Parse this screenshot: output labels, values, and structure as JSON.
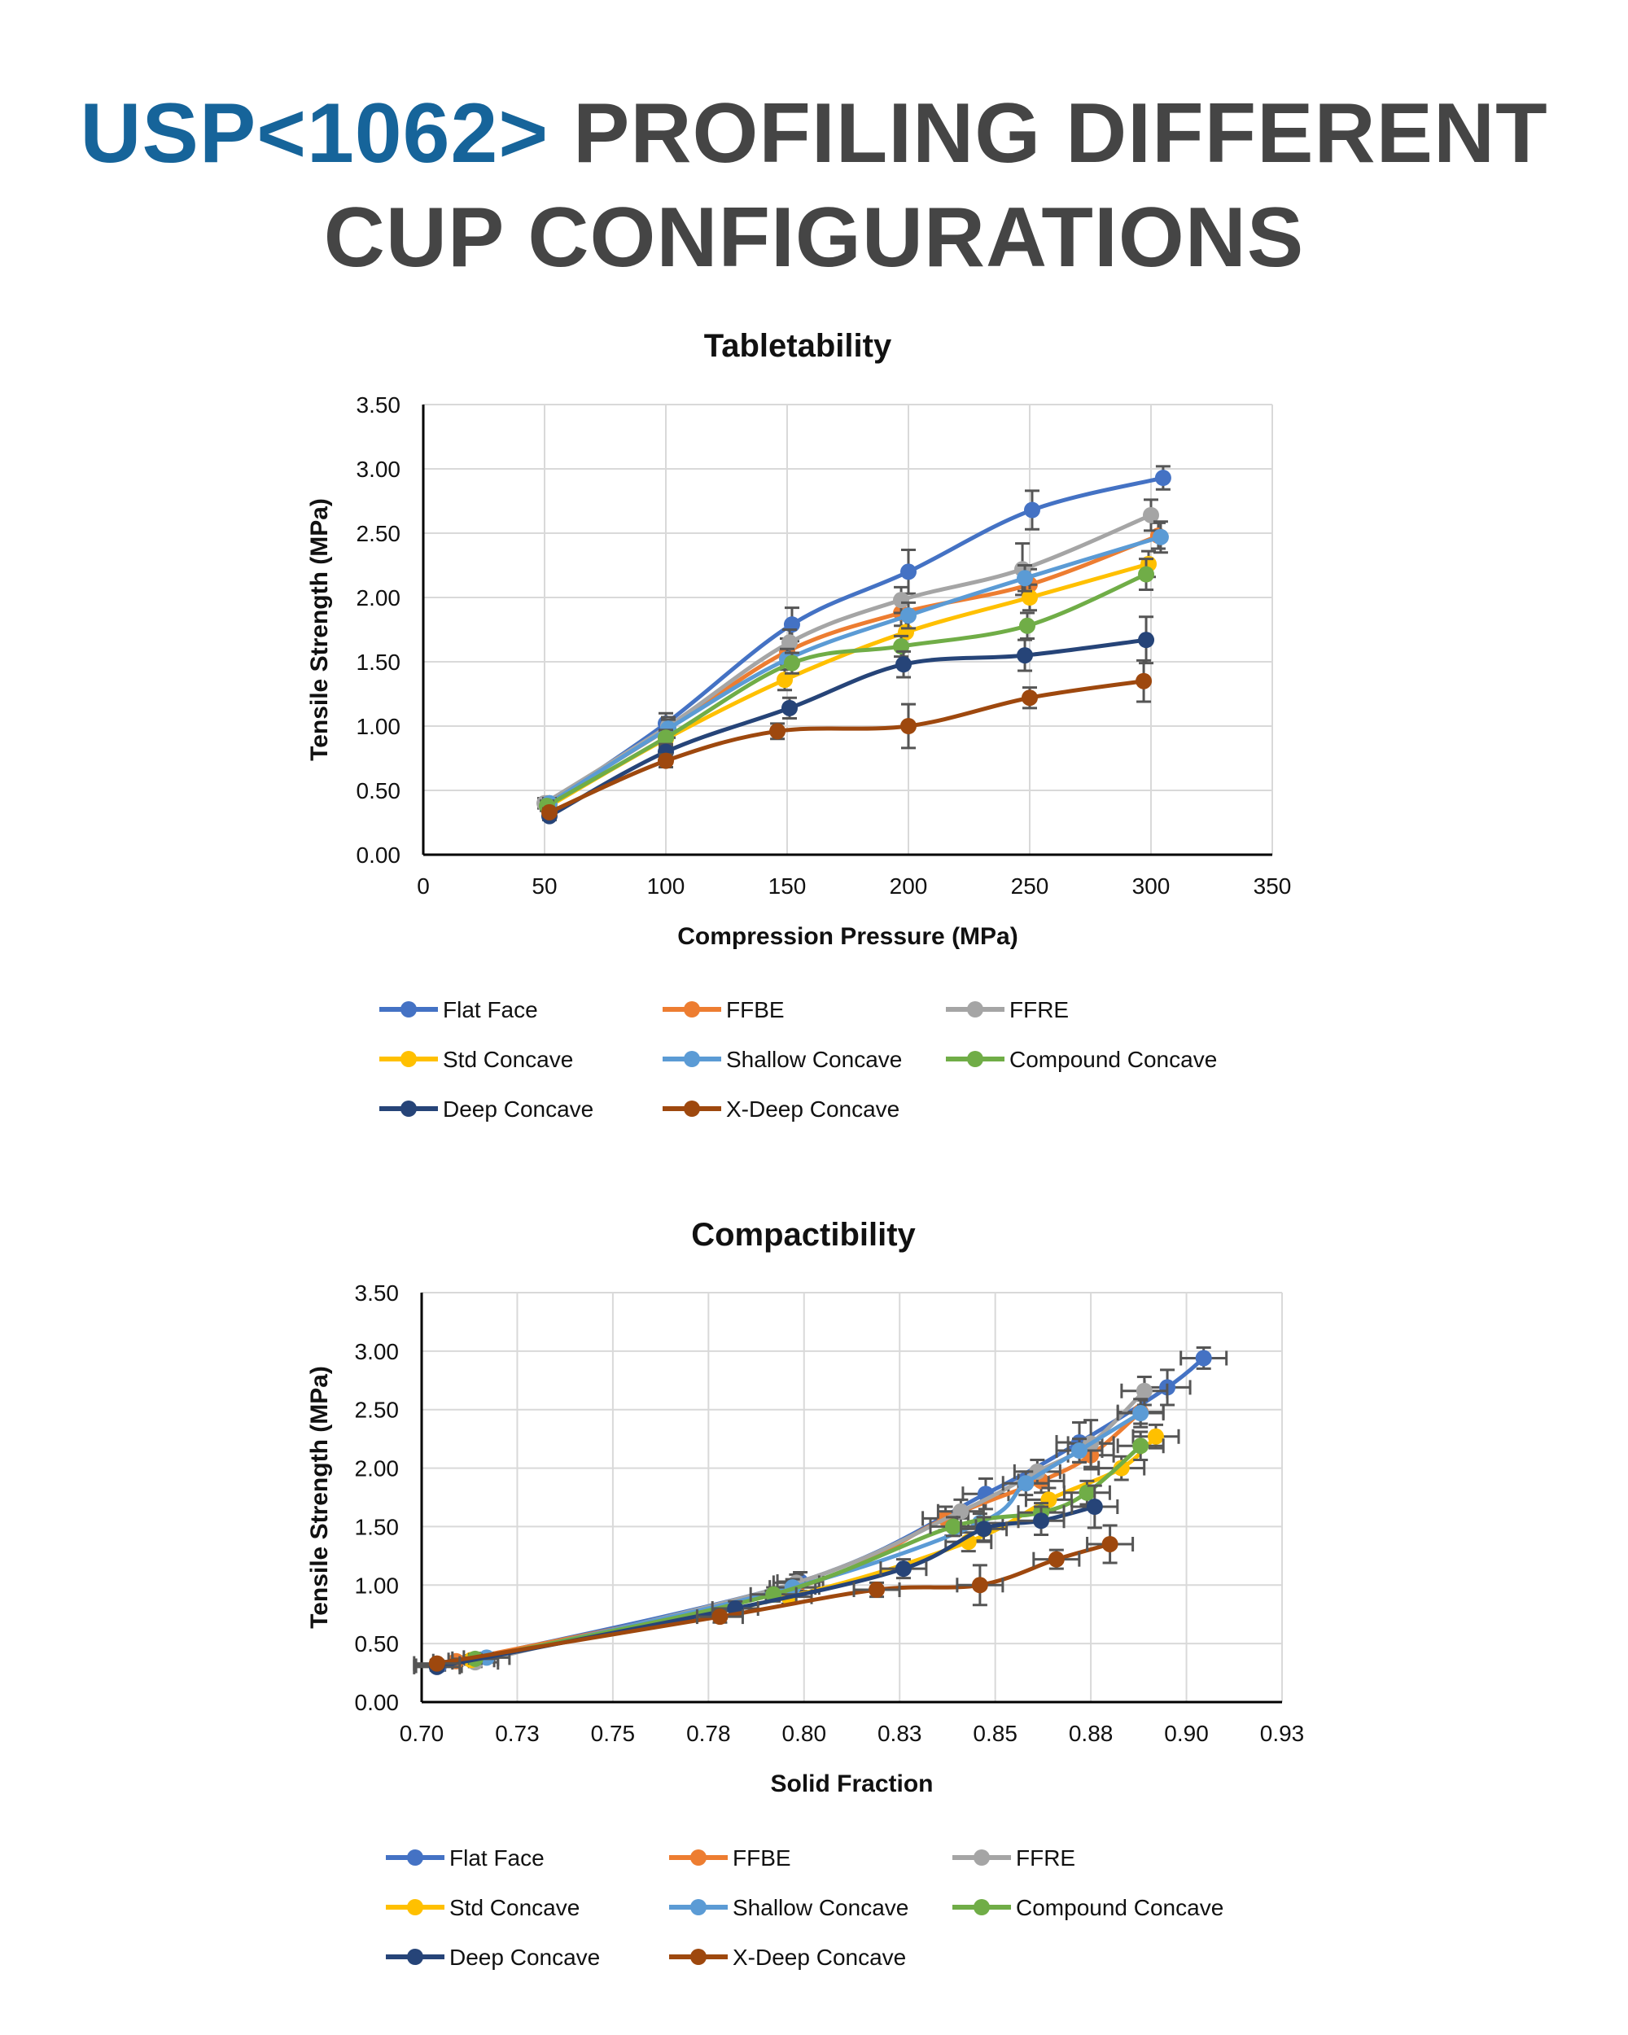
{
  "header": {
    "title_accent": "USP<1062>",
    "title_rest": "PROFILING DIFFERENT",
    "title_line2": "CUP CONFIGURATIONS"
  },
  "colors": {
    "accent": "#16649a",
    "title_gray": "#454545",
    "Flat Face": "#4472c4",
    "FFBE": "#ed7d31",
    "FFRE": "#a5a5a5",
    "Std Concave": "#ffc000",
    "Shallow Concave": "#5b9bd5",
    "Compound Concave": "#70ad47",
    "Deep Concave": "#264478",
    "X-Deep Concave": "#9e480e"
  },
  "chart_data": [
    {
      "type": "line",
      "title": "Tabletability",
      "xlabel": "Compression Pressure (MPa)",
      "ylabel": "Tensile Strength (MPa)",
      "xlim": [
        0,
        350
      ],
      "ylim": [
        0,
        3.5
      ],
      "xticks": [
        "0",
        "50",
        "100",
        "150",
        "200",
        "250",
        "300",
        "350"
      ],
      "yticks": [
        "0.00",
        "0.50",
        "1.00",
        "1.50",
        "2.00",
        "2.50",
        "3.00",
        "3.50"
      ],
      "grid": "on",
      "legend_position": "bottom",
      "series": [
        {
          "name": "Flat Face",
          "x": [
            52,
            100,
            152,
            200,
            251,
            305
          ],
          "y": [
            0.4,
            1.02,
            1.79,
            2.2,
            2.68,
            2.93
          ],
          "err": [
            0.04,
            0.08,
            0.13,
            0.17,
            0.15,
            0.09
          ]
        },
        {
          "name": "FFBE",
          "x": [
            51,
            101,
            150,
            197,
            250,
            303
          ],
          "y": [
            0.4,
            0.98,
            1.58,
            1.88,
            2.1,
            2.48
          ],
          "err": [
            0.04,
            0.07,
            0.1,
            0.1,
            0.12,
            0.1
          ]
        },
        {
          "name": "FFRE",
          "x": [
            50,
            101,
            151,
            197,
            247,
            300
          ],
          "y": [
            0.4,
            1.0,
            1.65,
            1.98,
            2.22,
            2.64
          ],
          "err": [
            0.04,
            0.07,
            0.1,
            0.1,
            0.2,
            0.12
          ]
        },
        {
          "name": "Std Concave",
          "x": [
            52,
            100,
            149,
            199,
            250,
            299
          ],
          "y": [
            0.38,
            0.9,
            1.36,
            1.73,
            2.0,
            2.26
          ],
          "err": [
            0.04,
            0.06,
            0.08,
            0.1,
            0.1,
            0.1
          ]
        },
        {
          "name": "Shallow Concave",
          "x": [
            52,
            101,
            150,
            200,
            248,
            304
          ],
          "y": [
            0.4,
            0.98,
            1.52,
            1.86,
            2.15,
            2.47
          ],
          "err": [
            0.04,
            0.07,
            0.08,
            0.1,
            0.1,
            0.12
          ]
        },
        {
          "name": "Compound Concave",
          "x": [
            51,
            100,
            152,
            197,
            249,
            298
          ],
          "y": [
            0.38,
            0.91,
            1.49,
            1.62,
            1.78,
            2.18
          ],
          "err": [
            0.04,
            0.06,
            0.08,
            0.08,
            0.1,
            0.12
          ]
        },
        {
          "name": "Deep Concave",
          "x": [
            52,
            100,
            151,
            198,
            248,
            298
          ],
          "y": [
            0.3,
            0.8,
            1.14,
            1.48,
            1.55,
            1.67
          ],
          "err": [
            0.03,
            0.06,
            0.08,
            0.1,
            0.12,
            0.18
          ]
        },
        {
          "name": "X-Deep Concave",
          "x": [
            52,
            100,
            146,
            200,
            250,
            297
          ],
          "y": [
            0.33,
            0.73,
            0.96,
            1.0,
            1.22,
            1.35
          ],
          "err": [
            0.03,
            0.05,
            0.06,
            0.17,
            0.08,
            0.16
          ]
        }
      ]
    },
    {
      "type": "scatter",
      "title": "Compactibility",
      "xlabel": "Solid Fraction",
      "ylabel": "Tensile Strength (MPa)",
      "xlim": [
        0.7,
        0.925
      ],
      "ylim": [
        0,
        3.5
      ],
      "xticks": [
        "0.70",
        "0.73",
        "0.75",
        "0.78",
        "0.80",
        "0.83",
        "0.85",
        "0.88",
        "0.90",
        "0.93"
      ],
      "yticks": [
        "0.00",
        "0.50",
        "1.00",
        "1.50",
        "2.00",
        "2.50",
        "3.00",
        "3.50"
      ],
      "grid": "on",
      "legend_position": "bottom",
      "series": [
        {
          "name": "Flat Face",
          "x": [
            0.7045,
            0.799,
            0.8475,
            0.872,
            0.895,
            0.9045
          ],
          "y": [
            0.31,
            1.03,
            1.78,
            2.22,
            2.69,
            2.94
          ],
          "err": [
            0.04,
            0.08,
            0.13,
            0.17,
            0.15,
            0.09
          ]
        },
        {
          "name": "FFBE",
          "x": [
            0.709,
            0.798,
            0.837,
            0.862,
            0.875,
            0.888
          ],
          "y": [
            0.35,
            0.98,
            1.57,
            1.89,
            2.11,
            2.48
          ],
          "err": [
            0.04,
            0.07,
            0.1,
            0.1,
            0.12,
            0.1
          ]
        },
        {
          "name": "FFRE",
          "x": [
            0.714,
            0.798,
            0.841,
            0.861,
            0.875,
            0.889
          ],
          "y": [
            0.34,
            1.02,
            1.63,
            1.97,
            2.21,
            2.66
          ],
          "err": [
            0.04,
            0.07,
            0.1,
            0.1,
            0.2,
            0.12
          ]
        },
        {
          "name": "Std Concave",
          "x": [
            0.713,
            0.796,
            0.843,
            0.864,
            0.883,
            0.892
          ],
          "y": [
            0.36,
            0.9,
            1.37,
            1.73,
            2.0,
            2.27
          ],
          "err": [
            0.04,
            0.06,
            0.08,
            0.1,
            0.1,
            0.1
          ]
        },
        {
          "name": "Shallow Concave",
          "x": [
            0.717,
            0.797,
            0.846,
            0.858,
            0.872,
            0.888
          ],
          "y": [
            0.38,
            0.98,
            1.53,
            1.87,
            2.15,
            2.47
          ],
          "err": [
            0.04,
            0.07,
            0.08,
            0.1,
            0.1,
            0.12
          ]
        },
        {
          "name": "Compound Concave",
          "x": [
            0.714,
            0.792,
            0.839,
            0.862,
            0.874,
            0.888
          ],
          "y": [
            0.37,
            0.92,
            1.5,
            1.62,
            1.79,
            2.19
          ],
          "err": [
            0.04,
            0.06,
            0.08,
            0.08,
            0.1,
            0.12
          ]
        },
        {
          "name": "Deep Concave",
          "x": [
            0.704,
            0.782,
            0.826,
            0.847,
            0.862,
            0.876
          ],
          "y": [
            0.3,
            0.8,
            1.14,
            1.48,
            1.55,
            1.67
          ],
          "err": [
            0.03,
            0.06,
            0.08,
            0.1,
            0.12,
            0.18
          ]
        },
        {
          "name": "X-Deep Concave",
          "x": [
            0.704,
            0.778,
            0.819,
            0.846,
            0.866,
            0.88
          ],
          "y": [
            0.33,
            0.73,
            0.96,
            1.0,
            1.22,
            1.35
          ],
          "err": [
            0.03,
            0.05,
            0.06,
            0.17,
            0.08,
            0.16
          ]
        }
      ]
    }
  ]
}
